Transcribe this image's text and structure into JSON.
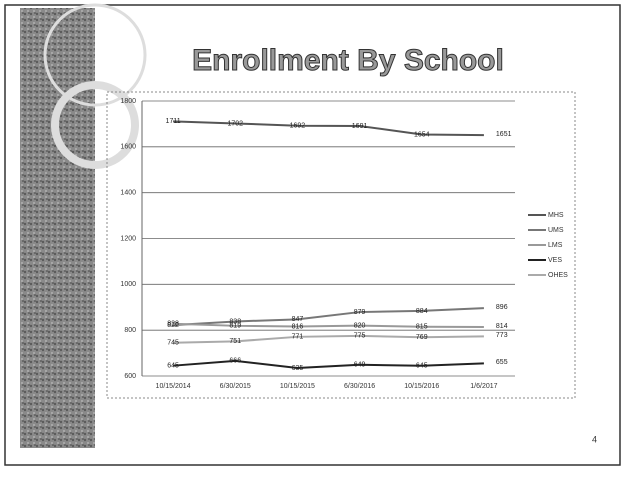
{
  "chart_data": {
    "type": "line",
    "title": "Enrollment By School",
    "categories": [
      "10/15/2014",
      "6/30/2015",
      "10/15/2015",
      "6/30/2016",
      "10/15/2016",
      "1/6/2017"
    ],
    "series": [
      {
        "name": "MHS",
        "color": "#555555",
        "values": [
          1711,
          1702,
          1692,
          1691,
          1654,
          1651
        ]
      },
      {
        "name": "UMS",
        "color": "#777777",
        "values": [
          822,
          838,
          847,
          879,
          884,
          896
        ]
      },
      {
        "name": "LMS",
        "color": "#999999",
        "values": [
          828,
          819,
          816,
          820,
          815,
          814
        ]
      },
      {
        "name": "VES",
        "color": "#222222",
        "values": [
          645,
          666,
          635,
          649,
          645,
          655
        ]
      },
      {
        "name": "OHES",
        "color": "#aaaaaa",
        "values": [
          745,
          751,
          771,
          775,
          769,
          773
        ]
      }
    ],
    "ylim": [
      600,
      1800
    ],
    "yticks": [
      600,
      800,
      1000,
      1200,
      1400,
      1600,
      1800
    ],
    "grid": true,
    "legend": "right"
  },
  "slide_number": 4
}
